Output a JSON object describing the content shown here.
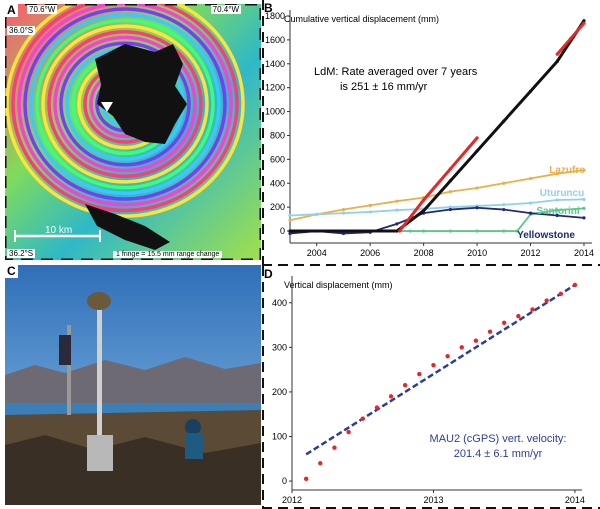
{
  "panel_a": {
    "label": "A",
    "corner_tl_lon": "70.6°W",
    "corner_tr_lon": "70.4°W",
    "corner_tl_lat": "36.0°S",
    "corner_bl_lat": "36.2°S",
    "scale_bar": "10 km",
    "fringe_note": "1 fringe = 15.5 mm range change"
  },
  "panel_c": {
    "label": "C"
  },
  "chart_data": [
    {
      "panel": "B",
      "type": "line",
      "title": "Cumulative vertical displacement (mm)",
      "annotation_line1": "LdM: Rate averaged over 7 years",
      "annotation_line2": "is 251 ± 16 mm/yr",
      "xlim": [
        2003,
        2014.3
      ],
      "ylim": [
        -100,
        1850
      ],
      "x_ticks": [
        "2004",
        "2006",
        "2008",
        "2010",
        "2012",
        "2014"
      ],
      "y_ticks": [
        "0",
        "200",
        "400",
        "600",
        "800",
        "1000",
        "1200",
        "1400",
        "1600",
        "1800"
      ],
      "series": [
        {
          "name": "Lazufre",
          "color": "#e8b04a",
          "x": [
            2003.0,
            2004.0,
            2005.0,
            2006.0,
            2007.0,
            2008.0,
            2009.0,
            2010.0,
            2011.0,
            2012.0,
            2013.0,
            2014.0
          ],
          "y": [
            90,
            140,
            180,
            215,
            250,
            280,
            330,
            360,
            400,
            440,
            480,
            510
          ]
        },
        {
          "name": "Uturuncu",
          "color": "#8fd0ea",
          "x": [
            2003.0,
            2004.0,
            2005.0,
            2006.0,
            2007.0,
            2008.0,
            2009.0,
            2010.0,
            2011.0,
            2012.0,
            2013.0,
            2014.0
          ],
          "y": [
            130,
            140,
            150,
            160,
            175,
            185,
            200,
            210,
            220,
            235,
            260,
            265
          ]
        },
        {
          "name": "Santorini",
          "color": "#59c98a",
          "x": [
            2003.0,
            2007.5,
            2008.0,
            2009.0,
            2010.0,
            2011.0,
            2011.5,
            2012.0,
            2013.0,
            2014.0
          ],
          "y": [
            0,
            0,
            0,
            0,
            0,
            0,
            0,
            140,
            175,
            190
          ]
        },
        {
          "name": "Yellowstone",
          "color": "#1f2a78",
          "x": [
            2003.0,
            2004.0,
            2005.0,
            2006.0,
            2007.0,
            2008.0,
            2009.0,
            2010.0,
            2011.0,
            2012.0,
            2013.0,
            2014.0
          ],
          "y": [
            -20,
            0,
            -20,
            -10,
            60,
            150,
            180,
            195,
            180,
            150,
            130,
            110
          ]
        },
        {
          "name": "",
          "color": "#111111",
          "x": [
            2003.0,
            2004.0,
            2005.0,
            2006.0,
            2007.0,
            2008.0,
            2009.0,
            2010.0,
            2011.0,
            2012.0,
            2013.0,
            2014.0
          ],
          "y": [
            0,
            0,
            0,
            0,
            0,
            170,
            420,
            670,
            920,
            1170,
            1420,
            1760
          ]
        },
        {
          "name": "",
          "color": "#e82626",
          "x": [
            2007.1,
            2008.0,
            2009.0,
            2010.0
          ],
          "y": [
            0,
            260,
            520,
            780
          ]
        },
        {
          "name": "",
          "color": "#e82626",
          "x": [
            2013.0,
            2013.5,
            2014.0
          ],
          "y": [
            1480,
            1610,
            1740
          ]
        }
      ]
    },
    {
      "panel": "D",
      "type": "scatter",
      "title": "Vertical displacement (mm)",
      "annotation_line1": "MAU2 (cGPS) vert. velocity:",
      "annotation_line2": "201.4 ± 6.1 mm/yr",
      "xlim": [
        2012,
        2014.05
      ],
      "ylim": [
        -20,
        460
      ],
      "x_ticks": [
        "2012",
        "2013",
        "2014"
      ],
      "y_ticks": [
        "0",
        "100",
        "200",
        "300",
        "400"
      ],
      "fit_line": {
        "x": [
          2012.1,
          2014.0
        ],
        "y": [
          60,
          440
        ],
        "color": "#2c3e9a"
      },
      "points": {
        "color": "#e82626",
        "x": [
          2012.1,
          2012.2,
          2012.3,
          2012.4,
          2012.5,
          2012.6,
          2012.7,
          2012.8,
          2012.9,
          2013.0,
          2013.1,
          2013.2,
          2013.3,
          2013.4,
          2013.5,
          2013.6,
          2013.7,
          2013.8,
          2013.9,
          2014.0
        ],
        "y": [
          5,
          40,
          75,
          110,
          140,
          165,
          190,
          215,
          240,
          260,
          280,
          300,
          315,
          335,
          355,
          370,
          385,
          405,
          420,
          440
        ]
      }
    }
  ]
}
